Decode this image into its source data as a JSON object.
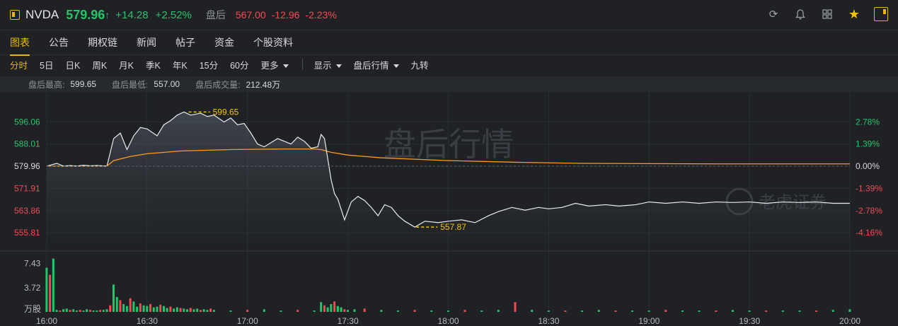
{
  "header": {
    "ticker": "NVDA",
    "price": "579.96",
    "arrow": "↑",
    "change": "+14.28",
    "change_pct": "+2.52%",
    "after_hours_label": "盘后",
    "after_hours_price": "567.00",
    "after_hours_change": "-12.96",
    "after_hours_change_pct": "-2.23%",
    "icons": [
      "refresh-icon",
      "bell-icon",
      "grid-icon",
      "star-icon",
      "sidebar-toggle-icon"
    ]
  },
  "tabs": [
    {
      "label": "图表",
      "active": true
    },
    {
      "label": "公告"
    },
    {
      "label": "期权链"
    },
    {
      "label": "新闻"
    },
    {
      "label": "帖子"
    },
    {
      "label": "资金"
    },
    {
      "label": "个股资料"
    }
  ],
  "periods": {
    "items": [
      {
        "label": "分时",
        "active": true
      },
      {
        "label": "5日"
      },
      {
        "label": "日K"
      },
      {
        "label": "周K"
      },
      {
        "label": "月K"
      },
      {
        "label": "季K"
      },
      {
        "label": "年K"
      },
      {
        "label": "15分"
      },
      {
        "label": "60分"
      }
    ],
    "more": "更多",
    "display": "显示",
    "ah_quote": "盘后行情",
    "nine": "九转"
  },
  "stats": {
    "high_label": "盘后最高:",
    "high": "599.65",
    "low_label": "盘后最低:",
    "low": "557.00",
    "vol_label": "盘后成交量:",
    "vol": "212.48万"
  },
  "chart_data": {
    "type": "line",
    "watermark": "盘后行情",
    "brand_watermark": "老虎证券",
    "reference_price": 579.96,
    "y_left_ticks": [
      "596.06",
      "588.01",
      "579.96",
      "571.91",
      "563.86",
      "555.81"
    ],
    "y_right_ticks": [
      "2.78%",
      "1.39%",
      "0.00%",
      "-1.39%",
      "-2.78%",
      "-4.16%"
    ],
    "x_ticks": [
      "16:00",
      "16:30",
      "17:00",
      "17:30",
      "18:00",
      "18:30",
      "19:00",
      "19:30",
      "20:00"
    ],
    "volume_ticks": [
      "7.43",
      "3.72",
      "万股"
    ],
    "annotations": [
      {
        "label": "599.65",
        "x": "16:42",
        "y": 599.65
      },
      {
        "label": "557.87",
        "x": "17:56",
        "y": 557.87
      }
    ],
    "price_series": {
      "x_minutes": [
        0,
        3,
        5,
        7,
        9,
        11,
        13,
        15,
        18,
        20,
        22,
        24,
        26,
        28,
        30,
        33,
        35,
        37,
        39,
        41,
        43,
        46,
        48,
        50,
        53,
        55,
        57,
        59,
        61,
        63,
        65,
        67,
        69,
        71,
        73,
        75,
        77,
        79,
        81,
        82,
        83,
        85,
        86,
        87,
        89,
        91,
        93,
        95,
        97,
        99,
        101,
        103,
        105,
        107,
        110,
        113,
        117,
        120,
        124,
        128,
        132,
        135,
        139,
        143,
        147,
        150,
        154,
        158,
        162,
        167,
        171,
        176,
        180,
        185,
        190,
        195,
        200,
        205,
        210,
        215,
        220,
        225,
        230,
        235,
        240
      ],
      "y": [
        580.0,
        581.0,
        580.0,
        580.2,
        580.0,
        580.3,
        580.1,
        580.2,
        580.0,
        590.0,
        592.0,
        586.0,
        591.0,
        594.0,
        593.5,
        591.0,
        595.0,
        596.5,
        598.5,
        599.65,
        598.5,
        599.2,
        598.0,
        598.5,
        596.0,
        597.5,
        595.0,
        595.5,
        592.0,
        588.0,
        587.0,
        588.5,
        590.0,
        589.0,
        588.0,
        590.5,
        589.0,
        586.5,
        587.0,
        591.5,
        590.0,
        575.0,
        570.0,
        568.0,
        560.5,
        567.0,
        569.0,
        567.5,
        565.0,
        562.0,
        566.0,
        565.0,
        562.0,
        560.0,
        557.87,
        560.0,
        559.5,
        560.0,
        560.5,
        559.5,
        562.0,
        563.5,
        565.0,
        564.0,
        565.0,
        564.5,
        565.0,
        566.5,
        565.5,
        566.0,
        565.5,
        566.0,
        567.0,
        566.5,
        567.0,
        566.5,
        567.0,
        566.8,
        567.0,
        566.5,
        567.0,
        566.8,
        567.0,
        566.5,
        566.5
      ]
    },
    "avg_series": {
      "x_minutes": [
        0,
        18,
        20,
        25,
        30,
        40,
        55,
        70,
        80,
        82,
        85,
        90,
        100,
        120,
        140,
        160,
        180,
        200,
        220,
        240
      ],
      "y": [
        580.0,
        580.0,
        582.0,
        583.5,
        584.5,
        585.5,
        586.0,
        586.2,
        586.2,
        586.0,
        585.0,
        584.0,
        583.0,
        582.0,
        581.4,
        581.0,
        580.9,
        580.8,
        580.8,
        580.8
      ]
    },
    "volume_series": {
      "x_minutes": [
        0,
        1,
        2,
        3,
        4,
        5,
        6,
        7,
        8,
        9,
        10,
        11,
        12,
        13,
        14,
        15,
        16,
        17,
        18,
        19,
        20,
        21,
        22,
        23,
        24,
        25,
        26,
        27,
        28,
        29,
        30,
        31,
        32,
        33,
        34,
        35,
        36,
        37,
        38,
        39,
        40,
        41,
        42,
        43,
        44,
        45,
        46,
        47,
        48,
        49,
        50,
        55,
        60,
        65,
        70,
        75,
        80,
        82,
        83,
        84,
        85,
        86,
        87,
        88,
        89,
        90,
        92,
        95,
        100,
        105,
        110,
        115,
        120,
        125,
        130,
        135,
        140,
        145,
        150,
        155,
        160,
        165,
        170,
        175,
        180,
        185,
        190,
        195,
        200,
        205,
        210,
        215,
        220,
        225,
        230,
        235,
        240
      ],
      "values": [
        6.8,
        5.7,
        8.2,
        0.3,
        0.2,
        0.4,
        0.5,
        0.3,
        0.4,
        0.2,
        0.3,
        0.2,
        0.4,
        0.3,
        0.2,
        0.2,
        0.3,
        0.3,
        0.4,
        1.0,
        4.2,
        2.3,
        1.8,
        1.2,
        0.9,
        2.1,
        1.6,
        0.8,
        1.3,
        1.0,
        0.9,
        1.2,
        0.7,
        0.8,
        1.1,
        0.9,
        0.6,
        0.8,
        0.5,
        0.7,
        0.6,
        0.5,
        0.4,
        0.6,
        0.4,
        0.5,
        0.3,
        0.4,
        0.3,
        0.5,
        0.3,
        0.2,
        0.3,
        0.4,
        0.2,
        0.3,
        0.2,
        1.5,
        1.0,
        0.7,
        1.2,
        1.6,
        0.9,
        0.7,
        0.4,
        0.3,
        0.4,
        0.5,
        0.3,
        0.2,
        0.3,
        0.2,
        0.2,
        0.3,
        0.2,
        0.3,
        1.5,
        0.3,
        0.2,
        0.2,
        0.2,
        0.3,
        0.2,
        0.2,
        0.2,
        0.3,
        0.2,
        0.2,
        0.2,
        0.3,
        0.2,
        0.2,
        0.2,
        0.2,
        0.2,
        0.3,
        0.4
      ],
      "colors_up": "#27c36b",
      "colors_down": "#f04b55"
    },
    "colors": {
      "price_line": "#e9ecef",
      "avg_line": "#ff9a1f",
      "up": "#27c36b",
      "down": "#f04b55",
      "annot": "#f2c200"
    }
  }
}
